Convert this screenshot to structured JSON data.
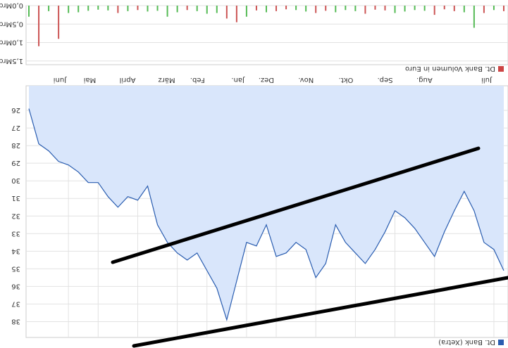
{
  "charts": [
    {
      "type": "line",
      "legend": "Dt. Bank (Xetra)",
      "categories": [
        null,
        "Juli",
        null,
        null,
        null,
        null,
        null,
        "Aug.",
        null,
        null,
        null,
        "Sep.",
        null,
        null,
        null,
        "Okt.",
        null,
        null,
        null,
        "Nov.",
        null,
        null,
        null,
        "Dez.",
        null,
        null,
        "Jan.",
        null,
        null,
        null,
        "Feb.",
        null,
        null,
        "März",
        null,
        null,
        null,
        "April",
        null,
        null,
        null,
        "Mai",
        null,
        null,
        "Juni",
        null,
        null,
        null,
        null
      ],
      "series": [
        {
          "name": "Dt. Bank (Xetra)",
          "color": "#2a5db0",
          "fill": "#d9e6fb",
          "values": [
            35.1,
            33.9,
            33.5,
            31.7,
            30.6,
            31.7,
            32.9,
            34.3,
            33.5,
            32.7,
            32.1,
            31.7,
            32.9,
            33.9,
            34.7,
            34.1,
            33.5,
            32.5,
            34.7,
            35.5,
            33.9,
            33.5,
            34.1,
            34.3,
            32.5,
            33.7,
            33.5,
            35.7,
            37.9,
            36.1,
            35.1,
            34.1,
            34.5,
            34.1,
            33.5,
            32.5,
            30.3,
            31.1,
            30.9,
            31.5,
            30.9,
            30.1,
            30.1,
            29.5,
            29.1,
            28.9,
            28.3,
            27.9,
            25.9
          ]
        }
      ],
      "ylim": [
        24.6,
        38.9
      ],
      "yticks": [
        26,
        27,
        28,
        29,
        30,
        31,
        32,
        33,
        34,
        35,
        36,
        37,
        38
      ],
      "grid": true
    },
    {
      "type": "bar",
      "legend": "Dt. Bank Volumen in Euro",
      "legend_color": "#c44",
      "values": [
        0.15,
        0.12,
        0.2,
        0.6,
        0.18,
        0.15,
        0.1,
        0.25,
        0.14,
        0.12,
        0.16,
        0.2,
        0.13,
        0.11,
        0.22,
        0.15,
        0.12,
        0.18,
        0.14,
        0.2,
        0.16,
        0.12,
        0.1,
        0.15,
        0.18,
        0.13,
        0.3,
        0.45,
        0.35,
        0.2,
        0.22,
        0.15,
        0.12,
        0.18,
        0.3,
        0.14,
        0.16,
        0.12,
        0.15,
        0.2,
        0.13,
        0.11,
        0.14,
        0.18,
        0.2,
        0.9,
        0.15,
        1.1,
        0.3
      ],
      "colors": [
        "#c55",
        "#5b5",
        "#c55",
        "#5b5",
        "#5b5",
        "#c55",
        "#c55",
        "#c55",
        "#5b5",
        "#5b5",
        "#5b5",
        "#5b5",
        "#c55",
        "#c55",
        "#c55",
        "#5b5",
        "#5b5",
        "#5b5",
        "#c55",
        "#c55",
        "#5b5",
        "#5b5",
        "#c55",
        "#c55",
        "#5b5",
        "#c55",
        "#5b5",
        "#c55",
        "#c55",
        "#5b5",
        "#5b5",
        "#5b5",
        "#c55",
        "#5b5",
        "#5b5",
        "#5b5",
        "#5b5",
        "#c55",
        "#5b5",
        "#c55",
        "#5b5",
        "#5b5",
        "#5b5",
        "#5b5",
        "#5b5",
        "#c55",
        "#5b5",
        "#c55",
        "#5b5"
      ],
      "ylim": [
        0,
        1.6
      ],
      "yticks": [
        {
          "value": 0,
          "label": "0,0Mrd"
        },
        {
          "value": 0.5,
          "label": "0,5Mrd"
        },
        {
          "value": 1,
          "label": "1,0Mrd"
        },
        {
          "value": 1.5,
          "label": "1,5Mrd"
        }
      ]
    }
  ]
}
